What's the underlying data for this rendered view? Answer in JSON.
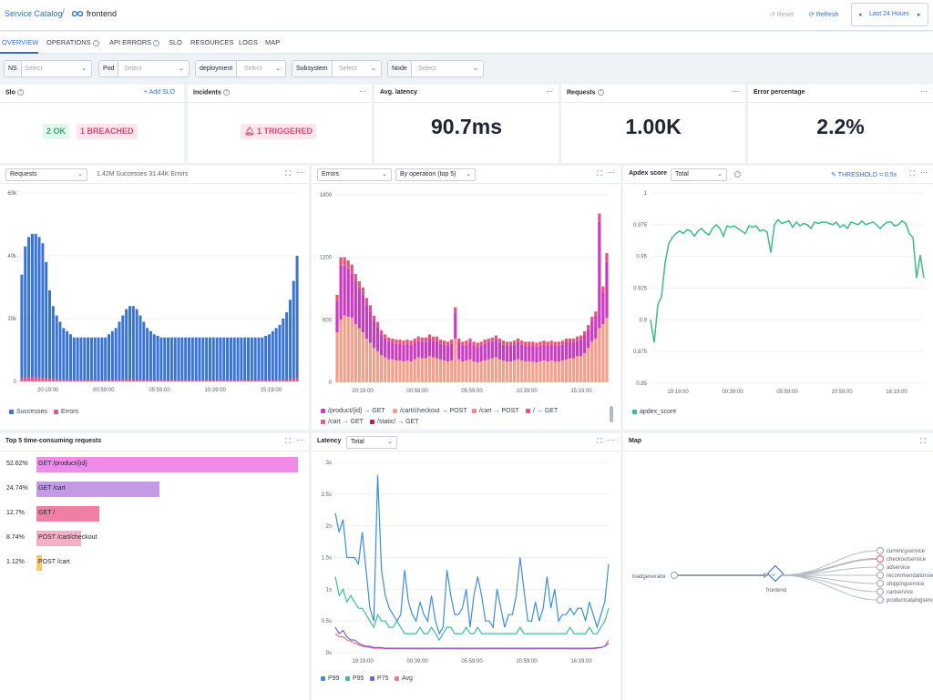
{
  "breadcrumb": {
    "root": "Service Catalog",
    "sep": "/",
    "current": "frontend"
  },
  "header": {
    "reset": "Reset",
    "refresh": "Refresh",
    "time_range": "Last 24 Hours"
  },
  "tabs": [
    "OVERVIEW",
    "OPERATIONS",
    "API ERRORS",
    "SLO",
    "RESOURCES",
    "LOGS",
    "MAP"
  ],
  "filters": [
    {
      "label": "NS",
      "placeholder": "Select"
    },
    {
      "label": "Pod",
      "placeholder": "Select"
    },
    {
      "label": "deployment",
      "placeholder": "Select"
    },
    {
      "label": "Subsystem",
      "placeholder": "Select"
    },
    {
      "label": "Node",
      "placeholder": "Select"
    }
  ],
  "stats": {
    "slo": {
      "title": "Slo",
      "add": "Add SLO",
      "ok": "2 OK",
      "breached": "1 BREACHED"
    },
    "incidents": {
      "title": "Incidents",
      "triggered": "1 TRIGGERED"
    },
    "latency": {
      "title": "Avg. latency",
      "value": "90.7ms"
    },
    "requests": {
      "title": "Requests",
      "value": "1.00K"
    },
    "errors": {
      "title": "Error percentage",
      "value": "2.2%"
    }
  },
  "colors": {
    "blue": "#3a73d6",
    "pink": "#e8557b",
    "magenta": "#c93bbf",
    "salmon": "#f2a08c",
    "green": "#3dbd85",
    "accent": "#2c6ed5"
  },
  "requests_panel": {
    "select": "Requests",
    "summary": "1.42M Successes 31.44K Errors",
    "legend": [
      "Successes",
      "Errors"
    ]
  },
  "errors_panel": {
    "select1": "Errors",
    "select2": "By operation (top 5)",
    "legend": [
      "/product/{id} → GET",
      "/cart/checkout → POST",
      "/cart → POST",
      "/ → GET",
      "/cart → GET",
      "/static/ → GET"
    ]
  },
  "apdex_panel": {
    "title": "Apdex score",
    "select": "Total",
    "threshold": "THRESHOLD = 0.5s",
    "legend": [
      "apdex_score"
    ]
  },
  "top5": {
    "title": "Top 5 time-consuming requests",
    "rows": [
      {
        "pct": "52.62%",
        "label": "GET /product/{id}",
        "color": "#f08ce8",
        "frac": 1.0
      },
      {
        "pct": "24.74%",
        "label": "GET /cart",
        "color": "#c49ae8",
        "frac": 0.47
      },
      {
        "pct": "12.7%",
        "label": "GET /",
        "color": "#f07fa3",
        "frac": 0.24
      },
      {
        "pct": "8.74%",
        "label": "POST /cart/checkout",
        "color": "#f4b0c5",
        "frac": 0.17
      },
      {
        "pct": "1.12%",
        "label": "POST /cart",
        "color": "#f6c86a",
        "frac": 0.02
      }
    ]
  },
  "latency_panel": {
    "title": "Latency",
    "select": "Total",
    "legend": [
      "P99",
      "P95",
      "P75",
      "Avg"
    ]
  },
  "map_panel": {
    "title": "Map",
    "source": "loadgenerator",
    "center": "frontend",
    "targets": [
      "currencyservice",
      "checkoutservice",
      "adservice",
      "recommendationservice",
      "shippingservice",
      "cartservice",
      "productcatalogservice"
    ]
  },
  "chart_data": [
    {
      "type": "bar",
      "title": "Requests",
      "x_ticks": [
        "20:19:00",
        "00:59:00",
        "05:59:00",
        "10:39:00",
        "15:19:00"
      ],
      "y_ticks": [
        "0",
        "20k",
        "40k",
        "60k"
      ],
      "ylim": [
        0,
        60000
      ],
      "series": [
        {
          "name": "Successes",
          "values": [
            34000,
            43000,
            46000,
            47000,
            47000,
            46000,
            44000,
            38000,
            29000,
            24000,
            21000,
            19000,
            17000,
            16000,
            15000,
            14000,
            14000,
            14000,
            14000,
            14000,
            14000,
            14000,
            14000,
            14000,
            14000,
            15000,
            16000,
            17000,
            19000,
            21000,
            23000,
            24000,
            24000,
            23000,
            21000,
            19000,
            17000,
            16000,
            15000,
            14500,
            14000,
            14000,
            14000,
            14000,
            14000,
            14000,
            14000,
            14000,
            14000,
            14000,
            14000,
            14000,
            14000,
            14000,
            14000,
            14000,
            14000,
            14000,
            14000,
            14000,
            14000,
            14000,
            14000,
            14000,
            14000,
            14000,
            14000,
            14000,
            14000,
            14000,
            14500,
            15000,
            16000,
            17000,
            18000,
            20000,
            22000,
            26000,
            32000,
            40000
          ]
        },
        {
          "name": "Errors",
          "values": [
            1200,
            1300,
            1400,
            1400,
            1300,
            1300,
            1200,
            1100,
            900,
            800,
            700,
            600,
            500,
            500,
            400,
            400,
            400,
            400,
            400,
            400,
            400,
            400,
            400,
            400,
            400,
            400,
            500,
            500,
            500,
            600,
            600,
            700,
            700,
            600,
            600,
            500,
            500,
            500,
            400,
            400,
            400,
            400,
            400,
            400,
            400,
            400,
            400,
            400,
            400,
            400,
            400,
            400,
            400,
            400,
            400,
            400,
            400,
            400,
            400,
            400,
            400,
            400,
            400,
            400,
            400,
            400,
            400,
            400,
            400,
            400,
            400,
            400,
            500,
            500,
            500,
            600,
            600,
            700,
            900,
            1200
          ]
        }
      ]
    },
    {
      "type": "bar",
      "stacked": true,
      "title": "Errors",
      "x_ticks": [
        "20:19:00",
        "00:59:00",
        "05:59:00",
        "10:39:00",
        "15:19:00"
      ],
      "y_ticks": [
        "0",
        "600",
        "1200",
        "1800"
      ],
      "ylim": [
        0,
        1800
      ],
      "series": [
        {
          "name": "/cart/checkout → POST",
          "values": [
            480,
            600,
            640,
            630,
            620,
            560,
            520,
            480,
            420,
            380,
            330,
            300,
            260,
            240,
            220,
            220,
            210,
            210,
            200,
            210,
            200,
            220,
            240,
            230,
            230,
            250,
            240,
            230,
            220,
            210,
            200,
            210,
            420,
            220,
            200,
            210,
            220,
            200,
            190,
            200,
            210,
            220,
            230,
            240,
            220,
            210,
            200,
            200,
            210,
            220,
            210,
            200,
            200,
            200,
            190,
            200,
            210,
            200,
            210,
            200,
            200,
            210,
            220,
            230,
            230,
            250,
            250,
            280,
            330,
            390,
            420,
            520,
            560,
            620
          ]
        },
        {
          "name": "/product/{id} → GET",
          "values": [
            300,
            520,
            480,
            460,
            430,
            410,
            380,
            360,
            330,
            300,
            260,
            230,
            200,
            180,
            170,
            160,
            160,
            160,
            160,
            160,
            160,
            160,
            160,
            160,
            160,
            170,
            160,
            170,
            150,
            150,
            150,
            160,
            240,
            160,
            150,
            150,
            160,
            150,
            150,
            150,
            160,
            160,
            160,
            170,
            160,
            150,
            150,
            150,
            150,
            160,
            150,
            150,
            150,
            150,
            150,
            150,
            150,
            150,
            150,
            150,
            150,
            150,
            160,
            150,
            150,
            150,
            160,
            170,
            180,
            200,
            220,
            1020,
            300,
            540
          ]
        },
        {
          "name": "/ → GET",
          "values": [
            60,
            80,
            80,
            80,
            80,
            70,
            70,
            70,
            60,
            60,
            50,
            50,
            40,
            40,
            40,
            40,
            40,
            40,
            40,
            40,
            40,
            40,
            40,
            40,
            40,
            40,
            40,
            40,
            40,
            40,
            40,
            40,
            60,
            40,
            40,
            40,
            40,
            40,
            40,
            40,
            40,
            40,
            40,
            40,
            40,
            40,
            40,
            40,
            40,
            40,
            40,
            40,
            40,
            40,
            40,
            40,
            40,
            40,
            40,
            40,
            40,
            40,
            40,
            40,
            40,
            40,
            40,
            40,
            40,
            40,
            40,
            80,
            60,
            80
          ]
        }
      ]
    },
    {
      "type": "line",
      "title": "Apdex score",
      "x_ticks": [
        "19:19:00",
        "00:39:00",
        "05:59:00",
        "10:59:00",
        "16:19:00"
      ],
      "y_ticks": [
        "0.85",
        "0.875",
        "0.9",
        "0.925",
        "0.95",
        "0.975",
        "1"
      ],
      "ylim": [
        0.85,
        1
      ],
      "series": [
        {
          "name": "apdex_score",
          "values": [
            0.9,
            0.882,
            0.912,
            0.918,
            0.945,
            0.96,
            0.965,
            0.968,
            0.97,
            0.968,
            0.971,
            0.97,
            0.966,
            0.97,
            0.972,
            0.969,
            0.967,
            0.972,
            0.975,
            0.972,
            0.966,
            0.974,
            0.973,
            0.974,
            0.972,
            0.97,
            0.968,
            0.974,
            0.973,
            0.974,
            0.97,
            0.971,
            0.969,
            0.953,
            0.975,
            0.979,
            0.976,
            0.977,
            0.978,
            0.973,
            0.977,
            0.974,
            0.976,
            0.975,
            0.972,
            0.977,
            0.976,
            0.977,
            0.977,
            0.976,
            0.975,
            0.977,
            0.973,
            0.975,
            0.972,
            0.977,
            0.976,
            0.975,
            0.978,
            0.975,
            0.976,
            0.977,
            0.975,
            0.972,
            0.975,
            0.977,
            0.977,
            0.974,
            0.975,
            0.978,
            0.976,
            0.968,
            0.965,
            0.933,
            0.951,
            0.933
          ]
        }
      ]
    },
    {
      "type": "bar",
      "title": "Top 5 time-consuming requests",
      "categories": [
        "GET /product/{id}",
        "GET /cart",
        "GET /",
        "POST /cart/checkout",
        "POST /cart"
      ],
      "values": [
        52.62,
        24.74,
        12.7,
        8.74,
        1.12
      ]
    },
    {
      "type": "line",
      "title": "Latency",
      "x_ticks": [
        "19:19:00",
        "00:39:00",
        "05:59:00",
        "10:59:00",
        "16:19:00"
      ],
      "y_ticks": [
        "0s",
        "0.5s",
        "1s",
        "1.5s",
        "2s",
        "2.5s",
        "3s"
      ],
      "ylim": [
        0,
        3
      ],
      "series": [
        {
          "name": "P99",
          "values": [
            2.2,
            1.9,
            2.1,
            1.5,
            1.5,
            1.5,
            1.4,
            1.9,
            1.3,
            0.7,
            0.5,
            2.8,
            1.3,
            0.9,
            0.7,
            0.6,
            0.5,
            0.6,
            1.3,
            0.8,
            0.6,
            0.5,
            0.8,
            0.6,
            0.5,
            0.9,
            0.5,
            0.3,
            0.4,
            1.3,
            0.9,
            0.6,
            0.6,
            0.7,
            1.0,
            0.4,
            0.9,
            1.2,
            0.9,
            0.5,
            0.5,
            0.4,
            1.0,
            0.7,
            0.4,
            0.6,
            0.6,
            0.9,
            1.5,
            1.0,
            0.5,
            0.5,
            0.8,
            0.5,
            0.7,
            1.2,
            0.7,
            1.0,
            0.5,
            0.6,
            0.6,
            0.7,
            0.6,
            0.7,
            0.7,
            0.5,
            0.8,
            0.6,
            0.4,
            0.6,
            0.8,
            1.4
          ]
        },
        {
          "name": "P95",
          "values": [
            1.2,
            0.9,
            1.0,
            0.8,
            0.9,
            0.8,
            0.7,
            0.7,
            0.6,
            0.5,
            0.4,
            0.6,
            0.5,
            0.5,
            0.4,
            0.4,
            0.5,
            0.4,
            0.3,
            0.3,
            0.3,
            0.3,
            0.4,
            0.3,
            0.3,
            0.4,
            0.3,
            0.2,
            0.3,
            0.4,
            0.4,
            0.3,
            0.3,
            0.3,
            0.4,
            0.3,
            0.3,
            0.4,
            0.3,
            0.3,
            0.3,
            0.3,
            0.3,
            0.3,
            0.3,
            0.3,
            0.3,
            0.3,
            0.4,
            0.3,
            0.3,
            0.3,
            0.3,
            0.3,
            0.3,
            0.3,
            0.3,
            0.3,
            0.3,
            0.3,
            0.3,
            0.4,
            0.3,
            0.3,
            0.3,
            0.3,
            0.4,
            0.3,
            0.3,
            0.4,
            0.5,
            0.7
          ]
        },
        {
          "name": "P75",
          "values": [
            0.4,
            0.3,
            0.35,
            0.25,
            0.2,
            0.2,
            0.15,
            0.12,
            0.1,
            0.1,
            0.08,
            0.08,
            0.08,
            0.07,
            0.07,
            0.07,
            0.07,
            0.07,
            0.07,
            0.07,
            0.07,
            0.07,
            0.07,
            0.07,
            0.07,
            0.07,
            0.07,
            0.07,
            0.07,
            0.07,
            0.07,
            0.07,
            0.07,
            0.07,
            0.07,
            0.07,
            0.07,
            0.07,
            0.07,
            0.07,
            0.07,
            0.07,
            0.07,
            0.07,
            0.07,
            0.07,
            0.07,
            0.07,
            0.07,
            0.07,
            0.07,
            0.07,
            0.07,
            0.07,
            0.07,
            0.07,
            0.07,
            0.07,
            0.07,
            0.07,
            0.07,
            0.07,
            0.07,
            0.07,
            0.07,
            0.07,
            0.07,
            0.07,
            0.08,
            0.08,
            0.1,
            0.15
          ]
        },
        {
          "name": "Avg",
          "values": [
            0.3,
            0.25,
            0.25,
            0.2,
            0.18,
            0.15,
            0.12,
            0.1,
            0.09,
            0.08,
            0.07,
            0.07,
            0.07,
            0.06,
            0.06,
            0.06,
            0.06,
            0.06,
            0.06,
            0.06,
            0.06,
            0.06,
            0.06,
            0.06,
            0.06,
            0.06,
            0.06,
            0.06,
            0.06,
            0.06,
            0.06,
            0.06,
            0.06,
            0.06,
            0.06,
            0.06,
            0.06,
            0.06,
            0.06,
            0.06,
            0.06,
            0.06,
            0.06,
            0.06,
            0.06,
            0.06,
            0.06,
            0.06,
            0.06,
            0.06,
            0.06,
            0.06,
            0.06,
            0.06,
            0.06,
            0.06,
            0.06,
            0.06,
            0.06,
            0.06,
            0.06,
            0.06,
            0.06,
            0.06,
            0.06,
            0.06,
            0.06,
            0.06,
            0.07,
            0.08,
            0.1,
            0.2
          ]
        }
      ]
    }
  ]
}
